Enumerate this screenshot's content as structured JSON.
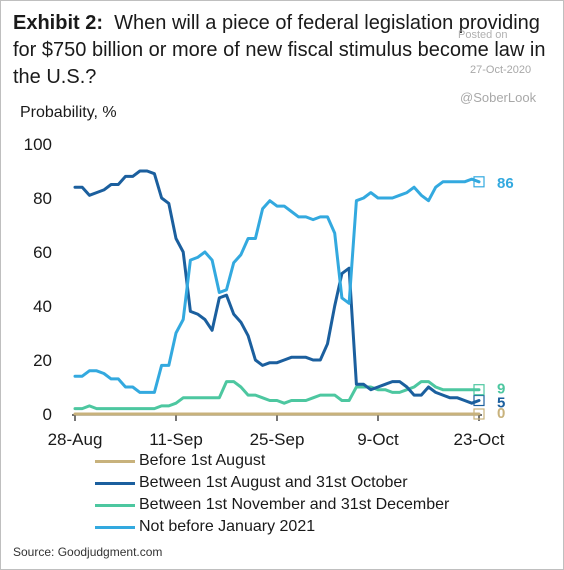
{
  "header": {
    "exhibit_label": "Exhibit 2:",
    "title_text": "When will a piece of federal legislation providing for $750 billion or more of new fiscal stimulus become law in the U.S.?"
  },
  "watermark": {
    "posted": "Posted on",
    "date": "27-Oct-2020",
    "handle": "@SoberLook"
  },
  "source": "Source: Goodjudgment.com",
  "colors": {
    "before_aug": "#c8b27c",
    "aug_oct": "#1b5f9e",
    "nov_dec": "#4dc7a0",
    "after_jan": "#33a9df",
    "axis": "#1a1a1a",
    "text": "#1a1a1a"
  },
  "chart_data": {
    "type": "line",
    "title": "When will a piece of federal legislation providing for $750 billion or more of new fiscal stimulus become law in the U.S.?",
    "ylabel": "Probability, %",
    "xlabel": "",
    "ylim": [
      0,
      100
    ],
    "yticks": [
      "0",
      "20",
      "40",
      "60",
      "80",
      "100"
    ],
    "xticks": [
      "28-Aug",
      "11-Sep",
      "25-Sep",
      "9-Oct",
      "23-Oct"
    ],
    "x_start": "2020-08-28",
    "x_end": "2020-10-23",
    "legend_position": "bottom",
    "series": [
      {
        "name": "Before 1st August",
        "color_key": "before_aug",
        "end_label": "0",
        "points": [
          [
            "2020-08-28",
            0
          ],
          [
            "2020-10-23",
            0
          ]
        ]
      },
      {
        "name": "Between 1st August and 31st October",
        "color_key": "aug_oct",
        "end_label": "5",
        "points": [
          [
            "2020-08-28",
            84
          ],
          [
            "2020-08-29",
            84
          ],
          [
            "2020-08-30",
            81
          ],
          [
            "2020-08-31",
            82
          ],
          [
            "2020-09-01",
            83
          ],
          [
            "2020-09-02",
            85
          ],
          [
            "2020-09-03",
            85
          ],
          [
            "2020-09-04",
            88
          ],
          [
            "2020-09-05",
            88
          ],
          [
            "2020-09-06",
            90
          ],
          [
            "2020-09-07",
            90
          ],
          [
            "2020-09-08",
            89
          ],
          [
            "2020-09-09",
            80
          ],
          [
            "2020-09-10",
            78
          ],
          [
            "2020-09-11",
            65
          ],
          [
            "2020-09-12",
            60
          ],
          [
            "2020-09-13",
            38
          ],
          [
            "2020-09-14",
            37
          ],
          [
            "2020-09-15",
            35
          ],
          [
            "2020-09-16",
            31
          ],
          [
            "2020-09-17",
            43
          ],
          [
            "2020-09-18",
            44
          ],
          [
            "2020-09-19",
            37
          ],
          [
            "2020-09-20",
            34
          ],
          [
            "2020-09-21",
            29
          ],
          [
            "2020-09-22",
            20
          ],
          [
            "2020-09-23",
            18
          ],
          [
            "2020-09-24",
            19
          ],
          [
            "2020-09-25",
            19
          ],
          [
            "2020-09-26",
            20
          ],
          [
            "2020-09-27",
            21
          ],
          [
            "2020-09-28",
            21
          ],
          [
            "2020-09-29",
            21
          ],
          [
            "2020-09-30",
            20
          ],
          [
            "2020-10-01",
            20
          ],
          [
            "2020-10-02",
            26
          ],
          [
            "2020-10-03",
            40
          ],
          [
            "2020-10-04",
            52
          ],
          [
            "2020-10-05",
            54
          ],
          [
            "2020-10-06",
            11
          ],
          [
            "2020-10-07",
            11
          ],
          [
            "2020-10-08",
            9
          ],
          [
            "2020-10-09",
            10
          ],
          [
            "2020-10-10",
            11
          ],
          [
            "2020-10-11",
            12
          ],
          [
            "2020-10-12",
            12
          ],
          [
            "2020-10-13",
            10
          ],
          [
            "2020-10-14",
            7
          ],
          [
            "2020-10-15",
            7
          ],
          [
            "2020-10-16",
            10
          ],
          [
            "2020-10-17",
            8
          ],
          [
            "2020-10-18",
            7
          ],
          [
            "2020-10-19",
            6
          ],
          [
            "2020-10-20",
            6
          ],
          [
            "2020-10-21",
            5
          ],
          [
            "2020-10-22",
            4
          ],
          [
            "2020-10-23",
            5
          ]
        ]
      },
      {
        "name": "Between 1st November and 31st December",
        "color_key": "nov_dec",
        "end_label": "9",
        "points": [
          [
            "2020-08-28",
            2
          ],
          [
            "2020-08-29",
            2
          ],
          [
            "2020-08-30",
            3
          ],
          [
            "2020-08-31",
            2
          ],
          [
            "2020-09-03",
            2
          ],
          [
            "2020-09-06",
            2
          ],
          [
            "2020-09-08",
            2
          ],
          [
            "2020-09-09",
            3
          ],
          [
            "2020-09-10",
            3
          ],
          [
            "2020-09-11",
            4
          ],
          [
            "2020-09-12",
            6
          ],
          [
            "2020-09-16",
            6
          ],
          [
            "2020-09-17",
            6
          ],
          [
            "2020-09-18",
            12
          ],
          [
            "2020-09-19",
            12
          ],
          [
            "2020-09-20",
            10
          ],
          [
            "2020-09-21",
            7
          ],
          [
            "2020-09-22",
            7
          ],
          [
            "2020-09-23",
            6
          ],
          [
            "2020-09-24",
            5
          ],
          [
            "2020-09-25",
            5
          ],
          [
            "2020-09-26",
            4
          ],
          [
            "2020-09-27",
            5
          ],
          [
            "2020-09-28",
            5
          ],
          [
            "2020-09-29",
            5
          ],
          [
            "2020-09-30",
            6
          ],
          [
            "2020-10-01",
            7
          ],
          [
            "2020-10-02",
            7
          ],
          [
            "2020-10-03",
            7
          ],
          [
            "2020-10-04",
            5
          ],
          [
            "2020-10-05",
            5
          ],
          [
            "2020-10-06",
            10
          ],
          [
            "2020-10-07",
            10
          ],
          [
            "2020-10-08",
            10
          ],
          [
            "2020-10-09",
            9
          ],
          [
            "2020-10-10",
            9
          ],
          [
            "2020-10-11",
            8
          ],
          [
            "2020-10-12",
            8
          ],
          [
            "2020-10-13",
            9
          ],
          [
            "2020-10-14",
            10
          ],
          [
            "2020-10-15",
            12
          ],
          [
            "2020-10-16",
            12
          ],
          [
            "2020-10-17",
            10
          ],
          [
            "2020-10-18",
            9
          ],
          [
            "2020-10-19",
            9
          ],
          [
            "2020-10-20",
            9
          ],
          [
            "2020-10-21",
            9
          ],
          [
            "2020-10-22",
            9
          ],
          [
            "2020-10-23",
            9
          ]
        ]
      },
      {
        "name": "Not before January 2021",
        "color_key": "after_jan",
        "end_label": "86",
        "points": [
          [
            "2020-08-28",
            14
          ],
          [
            "2020-08-29",
            14
          ],
          [
            "2020-08-30",
            16
          ],
          [
            "2020-08-31",
            16
          ],
          [
            "2020-09-01",
            15
          ],
          [
            "2020-09-02",
            13
          ],
          [
            "2020-09-03",
            13
          ],
          [
            "2020-09-04",
            10
          ],
          [
            "2020-09-05",
            10
          ],
          [
            "2020-09-06",
            8
          ],
          [
            "2020-09-07",
            8
          ],
          [
            "2020-09-08",
            8
          ],
          [
            "2020-09-09",
            18
          ],
          [
            "2020-09-10",
            18
          ],
          [
            "2020-09-11",
            30
          ],
          [
            "2020-09-12",
            35
          ],
          [
            "2020-09-13",
            57
          ],
          [
            "2020-09-14",
            58
          ],
          [
            "2020-09-15",
            60
          ],
          [
            "2020-09-16",
            57
          ],
          [
            "2020-09-17",
            45
          ],
          [
            "2020-09-18",
            46
          ],
          [
            "2020-09-19",
            56
          ],
          [
            "2020-09-20",
            59
          ],
          [
            "2020-09-21",
            65
          ],
          [
            "2020-09-22",
            65
          ],
          [
            "2020-09-23",
            76
          ],
          [
            "2020-09-24",
            79
          ],
          [
            "2020-09-25",
            77
          ],
          [
            "2020-09-26",
            77
          ],
          [
            "2020-09-27",
            75
          ],
          [
            "2020-09-28",
            73
          ],
          [
            "2020-09-29",
            73
          ],
          [
            "2020-09-30",
            72
          ],
          [
            "2020-10-01",
            73
          ],
          [
            "2020-10-02",
            73
          ],
          [
            "2020-10-03",
            67
          ],
          [
            "2020-10-04",
            43
          ],
          [
            "2020-10-05",
            41
          ],
          [
            "2020-10-06",
            79
          ],
          [
            "2020-10-07",
            80
          ],
          [
            "2020-10-08",
            82
          ],
          [
            "2020-10-09",
            80
          ],
          [
            "2020-10-10",
            80
          ],
          [
            "2020-10-11",
            80
          ],
          [
            "2020-10-12",
            81
          ],
          [
            "2020-10-13",
            82
          ],
          [
            "2020-10-14",
            84
          ],
          [
            "2020-10-15",
            81
          ],
          [
            "2020-10-16",
            79
          ],
          [
            "2020-10-17",
            84
          ],
          [
            "2020-10-18",
            86
          ],
          [
            "2020-10-19",
            86
          ],
          [
            "2020-10-20",
            86
          ],
          [
            "2020-10-21",
            86
          ],
          [
            "2020-10-22",
            87
          ],
          [
            "2020-10-23",
            86
          ]
        ]
      }
    ]
  }
}
